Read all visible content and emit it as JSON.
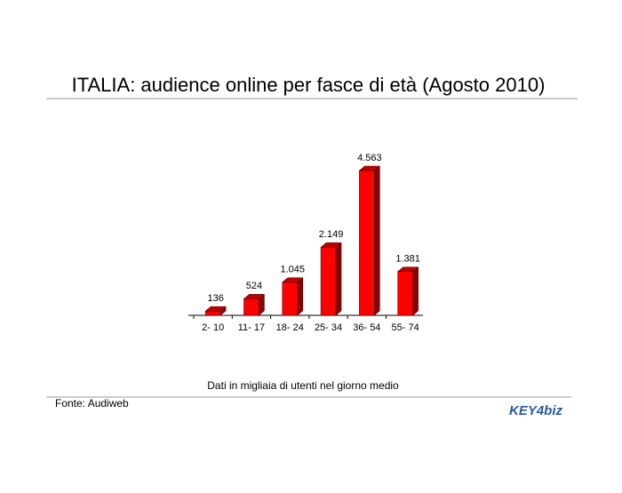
{
  "chart_data": {
    "type": "bar3d",
    "title": "ITALIA: audience online per fasce di età (Agosto 2010)",
    "categories": [
      "2- 10",
      "11- 17",
      "18- 24",
      "25- 34",
      "36- 54",
      "55- 74"
    ],
    "values": [
      136,
      524,
      1045,
      2149,
      4563,
      1381
    ],
    "value_labels": [
      "136",
      "524",
      "1.045",
      "2.149",
      "4.563",
      "1.381"
    ],
    "color": "#ff0000",
    "note": "Dati in migliaia di utenti nel giorno medio",
    "source": "Fonte: Audiweb",
    "logo": "KEY4biz"
  }
}
